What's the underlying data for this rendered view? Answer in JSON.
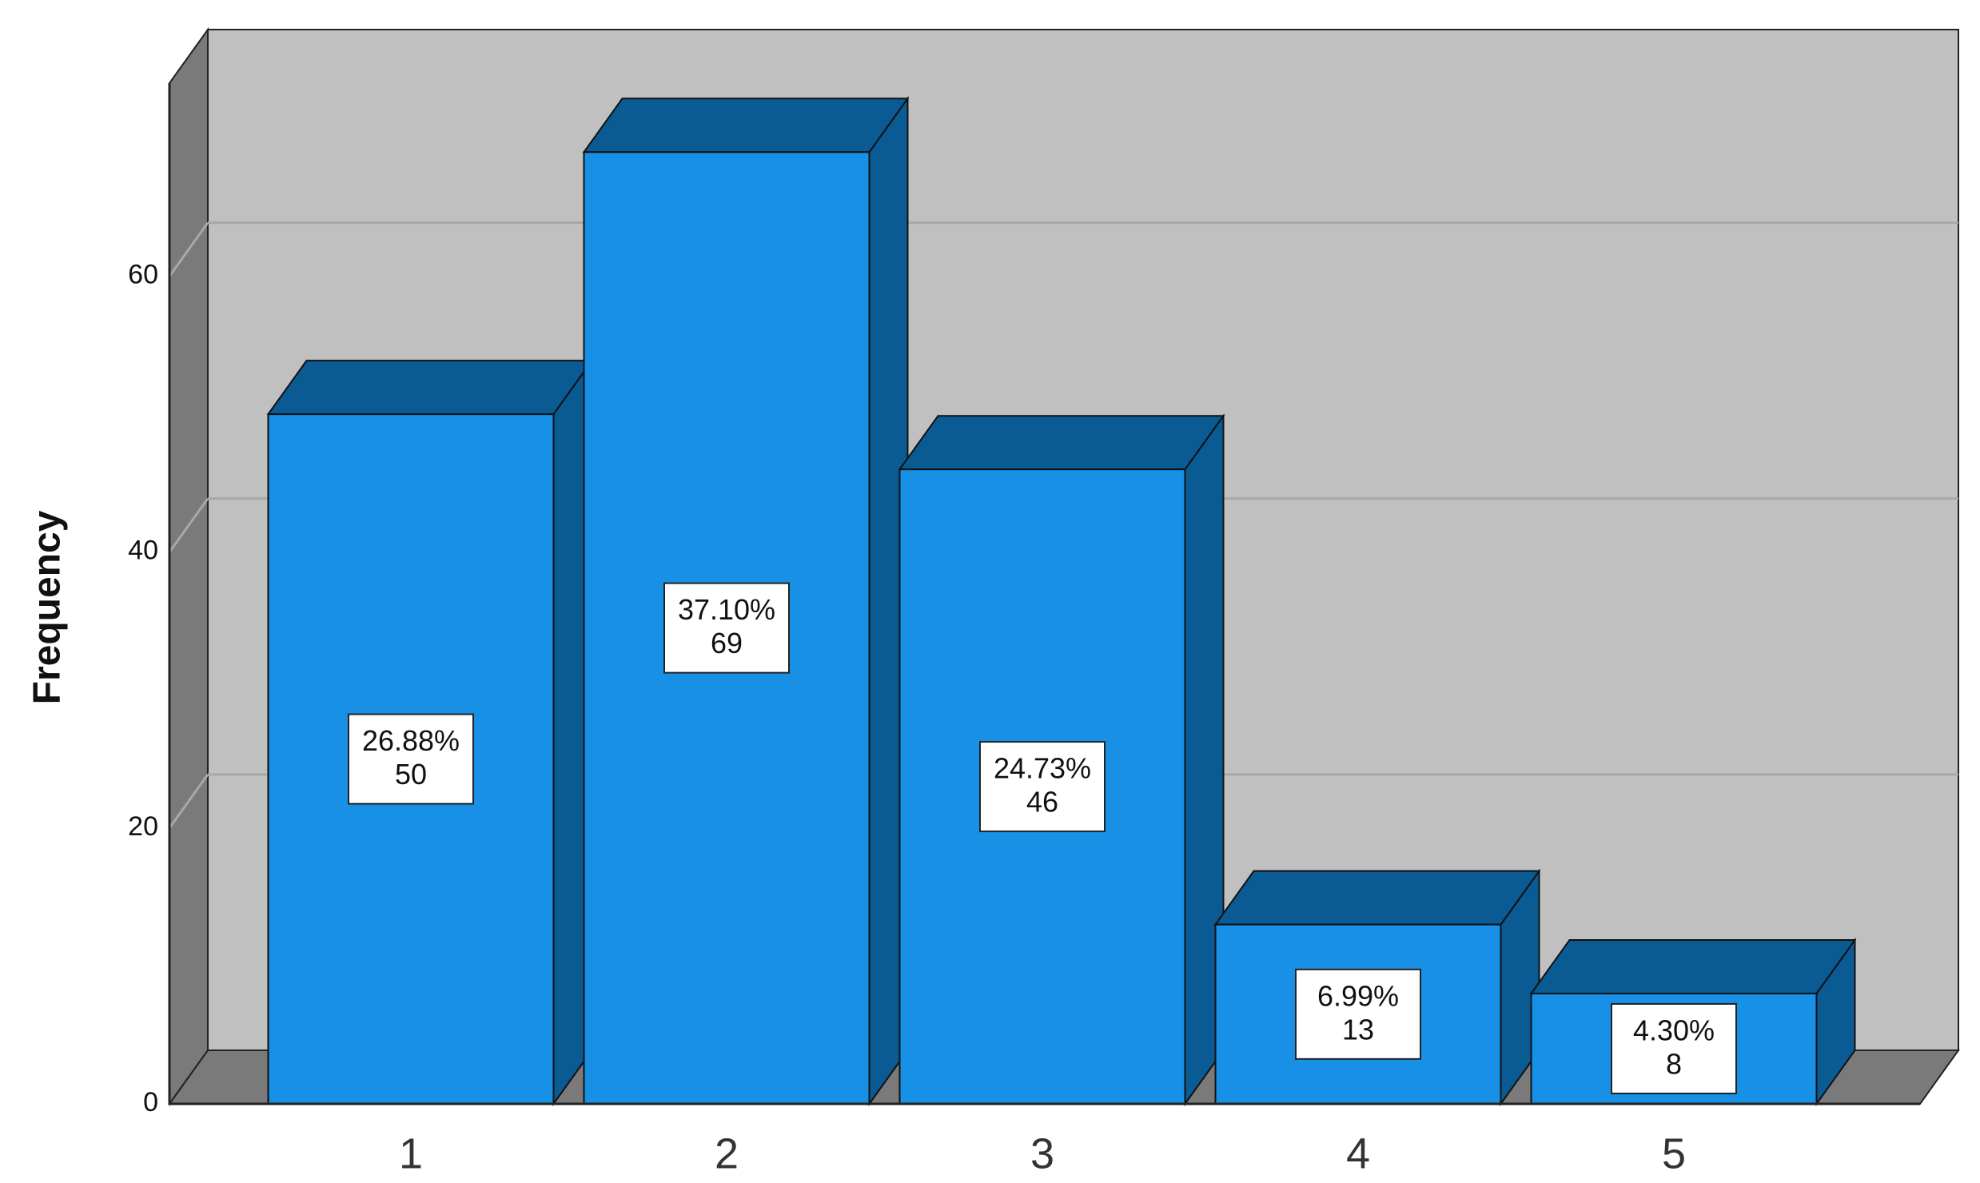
{
  "chart_data": {
    "type": "bar3d",
    "y_label": "Frequency",
    "categories": [
      "1",
      "2",
      "3",
      "4",
      "5"
    ],
    "values": [
      50,
      69,
      46,
      13,
      8
    ],
    "percent_labels": [
      "26.88%",
      "37.10%",
      "24.73%",
      "6.99%",
      "4.30%"
    ],
    "color": "#1790e6",
    "ylim": [
      0,
      74
    ],
    "yticks": [
      0,
      20,
      40,
      60
    ],
    "grid": true
  }
}
